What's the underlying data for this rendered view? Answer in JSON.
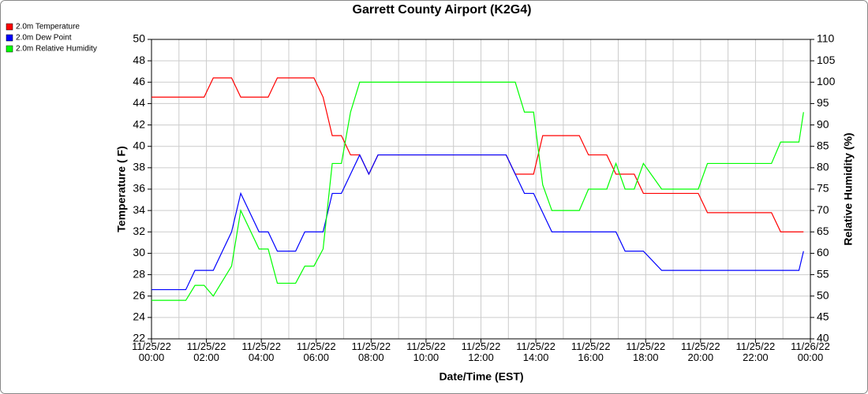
{
  "chart_data": {
    "type": "line",
    "title": "Garrett County Airport (K2G4)",
    "x_label": "Date/Time (EST)",
    "y_label": "Temperature ( F)",
    "y2_label": "Relative Humidity (%)",
    "x": [
      "2022-11-25T00:00",
      "2022-11-25T01:15",
      "2022-11-25T01:35",
      "2022-11-25T01:55",
      "2022-11-25T02:15",
      "2022-11-25T02:55",
      "2022-11-25T03:15",
      "2022-11-25T03:55",
      "2022-11-25T04:15",
      "2022-11-25T04:35",
      "2022-11-25T05:15",
      "2022-11-25T05:35",
      "2022-11-25T05:55",
      "2022-11-25T06:15",
      "2022-11-25T06:35",
      "2022-11-25T06:55",
      "2022-11-25T07:15",
      "2022-11-25T07:35",
      "2022-11-25T07:55",
      "2022-11-25T08:15",
      "2022-11-25T12:55",
      "2022-11-25T13:15",
      "2022-11-25T13:35",
      "2022-11-25T13:55",
      "2022-11-25T14:15",
      "2022-11-25T14:35",
      "2022-11-25T15:35",
      "2022-11-25T15:55",
      "2022-11-25T16:35",
      "2022-11-25T16:55",
      "2022-11-25T17:15",
      "2022-11-25T17:35",
      "2022-11-25T17:55",
      "2022-11-25T18:35",
      "2022-11-25T19:55",
      "2022-11-25T20:15",
      "2022-11-25T22:35",
      "2022-11-25T22:55",
      "2022-11-25T23:35",
      "2022-11-25T23:45"
    ],
    "series": [
      {
        "name": "2.0m Temperature",
        "color": "#ff0000",
        "values": [
          44.6,
          44.6,
          44.6,
          44.6,
          46.4,
          46.4,
          44.6,
          44.6,
          44.6,
          46.4,
          46.4,
          46.4,
          46.4,
          44.6,
          41,
          41,
          39.2,
          39.2,
          37.4,
          39.2,
          39.2,
          37.4,
          37.4,
          37.4,
          41,
          41,
          41,
          39.2,
          39.2,
          37.4,
          37.4,
          37.4,
          35.6,
          35.6,
          35.6,
          33.8,
          33.8,
          32,
          32,
          32
        ]
      },
      {
        "name": "2.0m Dew Point",
        "color": "#0000ff",
        "values": [
          26.6,
          26.6,
          28.4,
          28.4,
          28.4,
          32,
          35.6,
          32,
          32,
          30.2,
          30.2,
          32,
          32,
          32,
          35.6,
          35.6,
          37.4,
          39.2,
          37.4,
          39.2,
          39.2,
          37.4,
          35.6,
          35.6,
          33.8,
          32,
          32,
          32,
          32,
          32,
          30.2,
          30.2,
          30.2,
          28.4,
          28.4,
          28.4,
          28.4,
          28.4,
          28.4,
          30.2
        ]
      },
      {
        "name": "2.0m Relative Humidity",
        "color": "#00ff00",
        "axis": "y2",
        "values": [
          49,
          49,
          52.5,
          52.5,
          50,
          57,
          70,
          61,
          61,
          53,
          53,
          57,
          57,
          61,
          81,
          81,
          93,
          100,
          100,
          100,
          100,
          100,
          93,
          93,
          76,
          70,
          70,
          75,
          75,
          81,
          75,
          75,
          81,
          75,
          75,
          81,
          81,
          86,
          86,
          93
        ]
      }
    ],
    "xlim": [
      "2022-11-25T00:00",
      "2022-11-26T00:00"
    ],
    "xticks": [
      {
        "value": "2022-11-25T00:00",
        "label": "11/25/22\n00:00"
      },
      {
        "value": "2022-11-25T02:00",
        "label": "11/25/22\n02:00"
      },
      {
        "value": "2022-11-25T04:00",
        "label": "11/25/22\n04:00"
      },
      {
        "value": "2022-11-25T06:00",
        "label": "11/25/22\n06:00"
      },
      {
        "value": "2022-11-25T08:00",
        "label": "11/25/22\n08:00"
      },
      {
        "value": "2022-11-25T10:00",
        "label": "11/25/22\n10:00"
      },
      {
        "value": "2022-11-25T12:00",
        "label": "11/25/22\n12:00"
      },
      {
        "value": "2022-11-25T14:00",
        "label": "11/25/22\n14:00"
      },
      {
        "value": "2022-11-25T16:00",
        "label": "11/25/22\n16:00"
      },
      {
        "value": "2022-11-25T18:00",
        "label": "11/25/22\n18:00"
      },
      {
        "value": "2022-11-25T20:00",
        "label": "11/25/22\n20:00"
      },
      {
        "value": "2022-11-25T22:00",
        "label": "11/25/22\n22:00"
      },
      {
        "value": "2022-11-26T00:00",
        "label": "11/26/22\n00:00"
      }
    ],
    "ylim": [
      22,
      50
    ],
    "yticks": [
      22,
      24,
      26,
      28,
      30,
      32,
      34,
      36,
      38,
      40,
      42,
      44,
      46,
      48,
      50
    ],
    "y2lim": [
      40,
      110
    ],
    "y2ticks": [
      40,
      45,
      50,
      55,
      60,
      65,
      70,
      75,
      80,
      85,
      90,
      95,
      100,
      105,
      110
    ],
    "grid": true,
    "legend": "top-left"
  }
}
